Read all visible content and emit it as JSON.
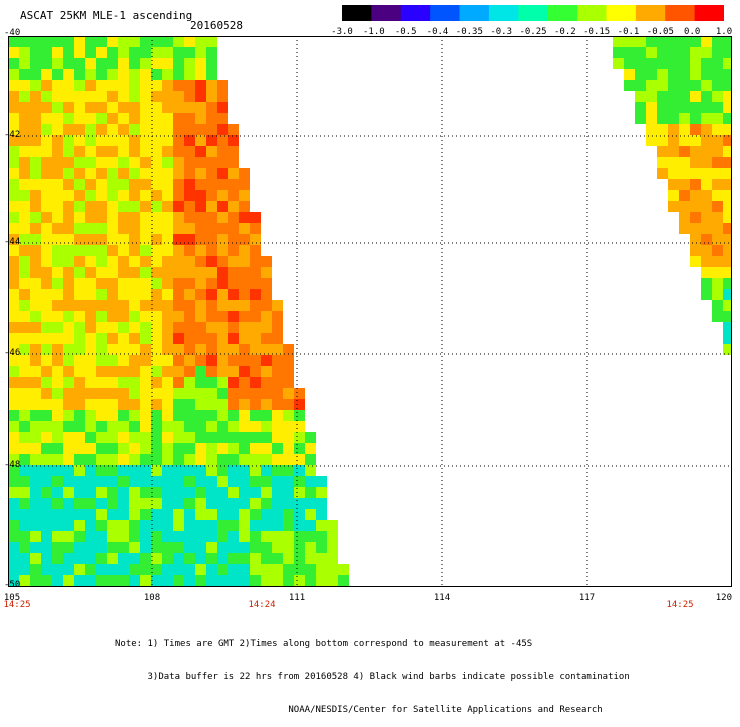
{
  "header": {
    "title": "ASCAT 25KM MLE-1 ascending",
    "date": "20160528"
  },
  "colorbar": {
    "labels": [
      "-3.0",
      "-1.0",
      "-0.5",
      "-0.4",
      "-0.35",
      "-0.3",
      "-0.25",
      "-0.2",
      "-0.15",
      "-0.1",
      "-0.05",
      "0.0",
      "1.0"
    ],
    "colors": [
      "#000000",
      "#4a0080",
      "#2a00ff",
      "#0055ff",
      "#00aaff",
      "#00e5e5",
      "#00ffaa",
      "#33ff33",
      "#aaff00",
      "#ffff00",
      "#ffaa00",
      "#ff5500",
      "#ff0000"
    ]
  },
  "map": {
    "lat_labels": [
      "-40",
      "-42",
      "-44",
      "-46",
      "-48",
      "-50"
    ],
    "lon_labels": [
      "105",
      "108",
      "111",
      "114",
      "117",
      "120"
    ],
    "time_labels": [
      "14:25",
      "14:24",
      "14:25"
    ],
    "colors": {
      "low": "#00e5c8",
      "green": "#33ee33",
      "yellowgreen": "#aaff00",
      "yellow": "#ffee00",
      "orange": "#ffaa00",
      "darkorange": "#ff7700",
      "red": "#ff3300"
    }
  },
  "notes": {
    "line1": "Note: 1) Times are GMT 2)Times along bottom correspond to measurement at -45S",
    "line2": "      3)Data buffer is 22 hrs from 20160528 4) Black wind barbs indicate possible contamination",
    "line3": "                                NOAA/NESDIS/Center for Satellite Applications and Research"
  }
}
